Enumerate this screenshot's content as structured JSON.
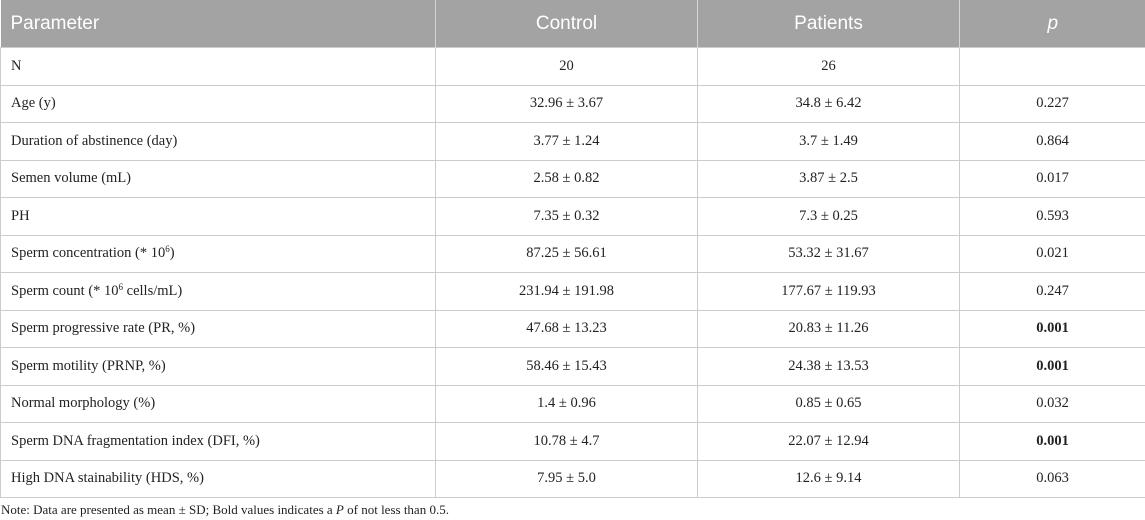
{
  "table": {
    "headers": [
      "Parameter",
      "Control",
      "Patients",
      "p"
    ],
    "rows": [
      {
        "param": "N",
        "control": "20",
        "patients": "26",
        "p": "",
        "p_bold": false
      },
      {
        "param": "Age (y)",
        "control": "32.96 ± 3.67",
        "patients": "34.8 ± 6.42",
        "p": "0.227",
        "p_bold": false
      },
      {
        "param": "Duration of abstinence (day)",
        "control": "3.77 ± 1.24",
        "patients": "3.7 ± 1.49",
        "p": "0.864",
        "p_bold": false
      },
      {
        "param": "Semen volume (mL)",
        "control": "2.58 ± 0.82",
        "patients": "3.87 ± 2.5",
        "p": "0.017",
        "p_bold": false
      },
      {
        "param": "PH",
        "control": "7.35 ± 0.32",
        "patients": "7.3 ± 0.25",
        "p": "0.593",
        "p_bold": false
      },
      {
        "param": "Sperm concentration (* 10",
        "param_sup": "6",
        "param_suffix": ")",
        "control": "87.25 ± 56.61",
        "patients": "53.32 ± 31.67",
        "p": "0.021",
        "p_bold": false
      },
      {
        "param": "Sperm count (* 10",
        "param_sup": "6",
        "param_suffix": " cells/mL)",
        "control": "231.94 ± 191.98",
        "patients": "177.67 ± 119.93",
        "p": "0.247",
        "p_bold": false
      },
      {
        "param": "Sperm progressive rate (PR, %)",
        "control": "47.68 ± 13.23",
        "patients": "20.83 ± 11.26",
        "p": "0.001",
        "p_bold": true
      },
      {
        "param": "Sperm motility (PRNP, %)",
        "control": "58.46 ± 15.43",
        "patients": "24.38 ± 13.53",
        "p": "0.001",
        "p_bold": true
      },
      {
        "param": "Normal morphology (%)",
        "control": "1.4 ± 0.96",
        "patients": "0.85 ± 0.65",
        "p": "0.032",
        "p_bold": false
      },
      {
        "param": "Sperm DNA fragmentation index (DFI, %)",
        "control": "10.78 ± 4.7",
        "patients": "22.07 ± 12.94",
        "p": "0.001",
        "p_bold": true
      },
      {
        "param": "High DNA stainability (HDS, %)",
        "control": "7.95 ± 5.0",
        "patients": "12.6 ± 9.14",
        "p": "0.063",
        "p_bold": false
      }
    ]
  },
  "note": {
    "prefix": "Note: Data are presented as mean ± SD; Bold values indicates a ",
    "italic": "P",
    "suffix": " of not less than 0.5."
  }
}
